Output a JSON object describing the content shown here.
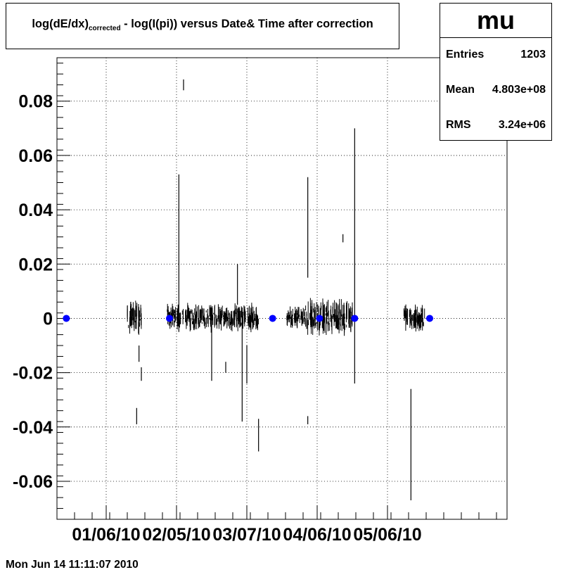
{
  "title": {
    "main": "log(dE/dx)",
    "subscript": "corrected",
    "rest": " - log(I(pi)) versus Date& Time after correction"
  },
  "stats": {
    "name": "mu",
    "rows": [
      {
        "label": "Entries",
        "value": "1203"
      },
      {
        "label": "Mean",
        "value": "4.803e+08"
      },
      {
        "label": "RMS",
        "value": "3.24e+06"
      }
    ]
  },
  "footer": "Mon Jun 14 11:11:07 2010",
  "colors": {
    "marker": "#0000ff",
    "data": "#000000",
    "grid": "#000000"
  },
  "chart_data": {
    "type": "scatter",
    "grid": true,
    "ylim": [
      -0.074,
      0.096
    ],
    "xlim": [
      "2009-12-16",
      "2010-06-26"
    ],
    "x_ticks": [
      "01/06/10",
      "02/05/10",
      "03/07/10",
      "04/06/10",
      "05/06/10"
    ],
    "x_tick_dates": [
      "2010-01-06",
      "2010-02-05",
      "2010-03-07",
      "2010-04-06",
      "2010-05-06"
    ],
    "y_ticks": [
      {
        "v": 0.08,
        "label": "0.08"
      },
      {
        "v": 0.06,
        "label": "0.06"
      },
      {
        "v": 0.04,
        "label": "0.04"
      },
      {
        "v": 0.02,
        "label": "0.02"
      },
      {
        "v": 0,
        "label": "0"
      },
      {
        "v": -0.02,
        "label": "-0.02"
      },
      {
        "v": -0.04,
        "label": "-0.04"
      },
      {
        "v": -0.06,
        "label": "-0.06"
      }
    ],
    "markers": {
      "x": [
        "2009-12-20",
        "2010-02-02",
        "2010-03-18",
        "2010-04-07",
        "2010-04-22",
        "2010-05-24"
      ],
      "y": [
        0,
        0,
        0,
        0,
        0,
        0
      ]
    },
    "clusters": [
      {
        "x_range": [
          "2010-01-15",
          "2010-01-21"
        ],
        "y_range": [
          -0.012,
          0.014
        ]
      },
      {
        "x_range": [
          "2010-02-01",
          "2010-03-12"
        ],
        "y_range": [
          -0.006,
          0.012
        ]
      },
      {
        "x_range": [
          "2010-03-24",
          "2010-04-01"
        ],
        "y_range": [
          -0.006,
          0.008
        ]
      },
      {
        "x_range": [
          "2010-04-01",
          "2010-04-21"
        ],
        "y_range": [
          -0.01,
          0.014
        ]
      },
      {
        "x_range": [
          "2010-05-13",
          "2010-05-22"
        ],
        "y_range": [
          -0.008,
          0.01
        ]
      }
    ],
    "spikes": [
      {
        "x": "2010-01-19",
        "y": [
          -0.039,
          -0.033
        ]
      },
      {
        "x": "2010-01-20",
        "y": [
          -0.016,
          -0.01
        ]
      },
      {
        "x": "2010-01-21",
        "y": [
          -0.023,
          -0.018
        ]
      },
      {
        "x": "2010-02-06",
        "y": [
          -0.005,
          0.053
        ]
      },
      {
        "x": "2010-02-08",
        "y": [
          0.084,
          0.088
        ]
      },
      {
        "x": "2010-02-20",
        "y": [
          -0.023,
          0.004
        ]
      },
      {
        "x": "2010-02-26",
        "y": [
          -0.02,
          -0.016
        ]
      },
      {
        "x": "2010-03-03",
        "y": [
          0.005,
          0.02
        ]
      },
      {
        "x": "2010-03-05",
        "y": [
          -0.038,
          0.004
        ]
      },
      {
        "x": "2010-03-07",
        "y": [
          -0.024,
          -0.01
        ]
      },
      {
        "x": "2010-03-12",
        "y": [
          -0.049,
          -0.037
        ]
      },
      {
        "x": "2010-04-02",
        "y": [
          0.015,
          0.052
        ]
      },
      {
        "x": "2010-04-02",
        "y": [
          -0.039,
          -0.036
        ]
      },
      {
        "x": "2010-04-17",
        "y": [
          0.028,
          0.031
        ]
      },
      {
        "x": "2010-04-22",
        "y": [
          -0.024,
          0.07
        ]
      },
      {
        "x": "2010-05-16",
        "y": [
          -0.067,
          -0.026
        ]
      }
    ]
  }
}
